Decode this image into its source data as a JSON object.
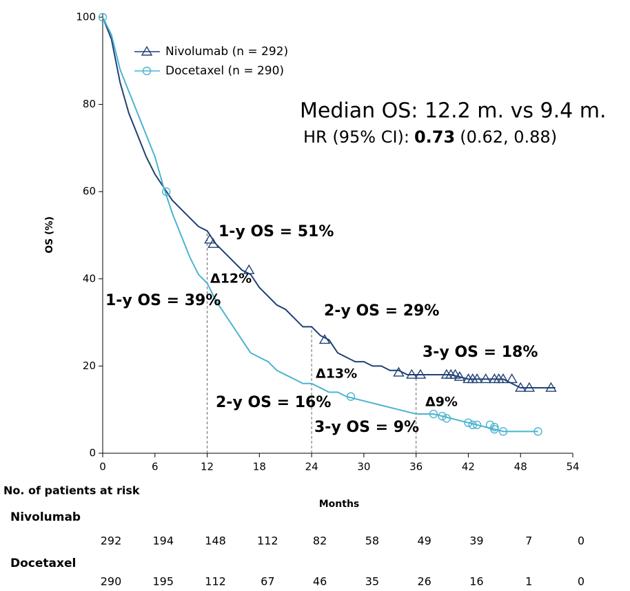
{
  "chart_data": {
    "type": "line",
    "xlabel": "Months",
    "ylabel": "OS (%)",
    "xlim": [
      0,
      54
    ],
    "xticks": [
      0,
      6,
      12,
      18,
      24,
      30,
      36,
      42,
      48,
      54
    ],
    "ylim": [
      0,
      100
    ],
    "yticks": [
      0,
      20,
      40,
      60,
      80,
      100
    ],
    "grid": false,
    "legend": "upper left",
    "series": [
      {
        "name": "Nivolumab (n = 292)",
        "color": "#1f3f73",
        "marker": "triangle",
        "x": [
          0,
          1,
          2,
          3,
          4,
          5,
          6,
          7,
          8,
          9,
          10,
          11,
          12,
          13,
          14,
          15,
          16,
          17,
          18,
          19,
          20,
          21,
          22,
          23,
          24,
          25,
          26,
          27,
          28,
          29,
          30,
          31,
          32,
          33,
          34,
          35,
          36,
          40,
          42,
          46,
          48,
          52
        ],
        "values": [
          100,
          95,
          85,
          78,
          73,
          68,
          64,
          61,
          58,
          56,
          54,
          52,
          51,
          48,
          46,
          44,
          42,
          41,
          38,
          36,
          34,
          33,
          31,
          29,
          29,
          27,
          26,
          23,
          22,
          21,
          21,
          20,
          20,
          19,
          19,
          18,
          18,
          18,
          17,
          17,
          15,
          15
        ],
        "censor_x": [
          12.3,
          12.7,
          16.8,
          25.5,
          34,
          35.5,
          36.5,
          39.5,
          40,
          40.5,
          41,
          42,
          42.5,
          43,
          44,
          45,
          45.5,
          46,
          47,
          48,
          49,
          51.5
        ],
        "censor_y": [
          49,
          48,
          42,
          26,
          18.5,
          18,
          18,
          18,
          18,
          18,
          17.5,
          17,
          17,
          17,
          17,
          17,
          17,
          17,
          17,
          15,
          15,
          15
        ]
      },
      {
        "name": "Docetaxel (n = 290)",
        "color": "#4bb3cf",
        "marker": "circle",
        "x": [
          0,
          1,
          2,
          3,
          4,
          5,
          6,
          7,
          8,
          9,
          10,
          11,
          12,
          13,
          14,
          15,
          16,
          17,
          18,
          19,
          20,
          21,
          22,
          23,
          24,
          25,
          26,
          27,
          28,
          30,
          32,
          34,
          36,
          38,
          40,
          42,
          44,
          46,
          50
        ],
        "values": [
          100,
          96,
          88,
          83,
          78,
          73,
          68,
          61,
          55,
          50,
          45,
          41,
          39,
          35,
          32,
          29,
          26,
          23,
          22,
          21,
          19,
          18,
          17,
          16,
          16,
          15,
          14,
          14,
          13,
          12,
          11,
          10,
          9,
          9,
          8,
          7,
          6,
          5,
          5
        ],
        "censor_x": [
          0,
          7.3,
          28.5,
          38,
          39,
          39.5,
          42,
          42.5,
          43,
          44.5,
          45,
          45,
          46,
          50
        ],
        "censor_y": [
          100,
          60,
          13,
          9,
          8.5,
          8,
          7,
          6.5,
          6.5,
          6.5,
          6,
          5.5,
          5,
          5
        ]
      }
    ],
    "vlines": [
      12,
      24,
      36
    ],
    "median_text": "Median OS: 12.2 m. vs 9.4 m.",
    "hr_label": "HR (95% CI):",
    "hr_value": "0.73",
    "hr_ci": "(0.62, 0.88)",
    "annotations": [
      {
        "text": "1-y OS = 51%",
        "color": "#8c8c8c"
      },
      {
        "text": "Δ12%",
        "color": "#8c8c8c"
      },
      {
        "text": "1-y OS = 39%",
        "color": "#8c8c8c"
      },
      {
        "text": "2-y OS = 29%",
        "color": "#8c8c8c"
      },
      {
        "text": "3-y OS = 18%",
        "color": "#1f3f73"
      },
      {
        "text": "Δ13%",
        "color": "#8c8c8c"
      },
      {
        "text": "2-y OS = 16%",
        "color": "#8c8c8c"
      },
      {
        "text": "Δ9%",
        "color": "#8c8c8c"
      },
      {
        "text": "3-y OS = 9%",
        "color": "#22a83a"
      }
    ],
    "risk_table": {
      "title": "No. of patients at risk",
      "rows": [
        {
          "name": "Nivolumab",
          "color": "#1f3f73",
          "values": [
            292,
            194,
            148,
            112,
            82,
            58,
            49,
            39,
            7,
            0
          ]
        },
        {
          "name": "Docetaxel",
          "color": "#4bb3cf",
          "values": [
            290,
            195,
            112,
            67,
            46,
            35,
            26,
            16,
            1,
            0
          ]
        }
      ]
    }
  }
}
